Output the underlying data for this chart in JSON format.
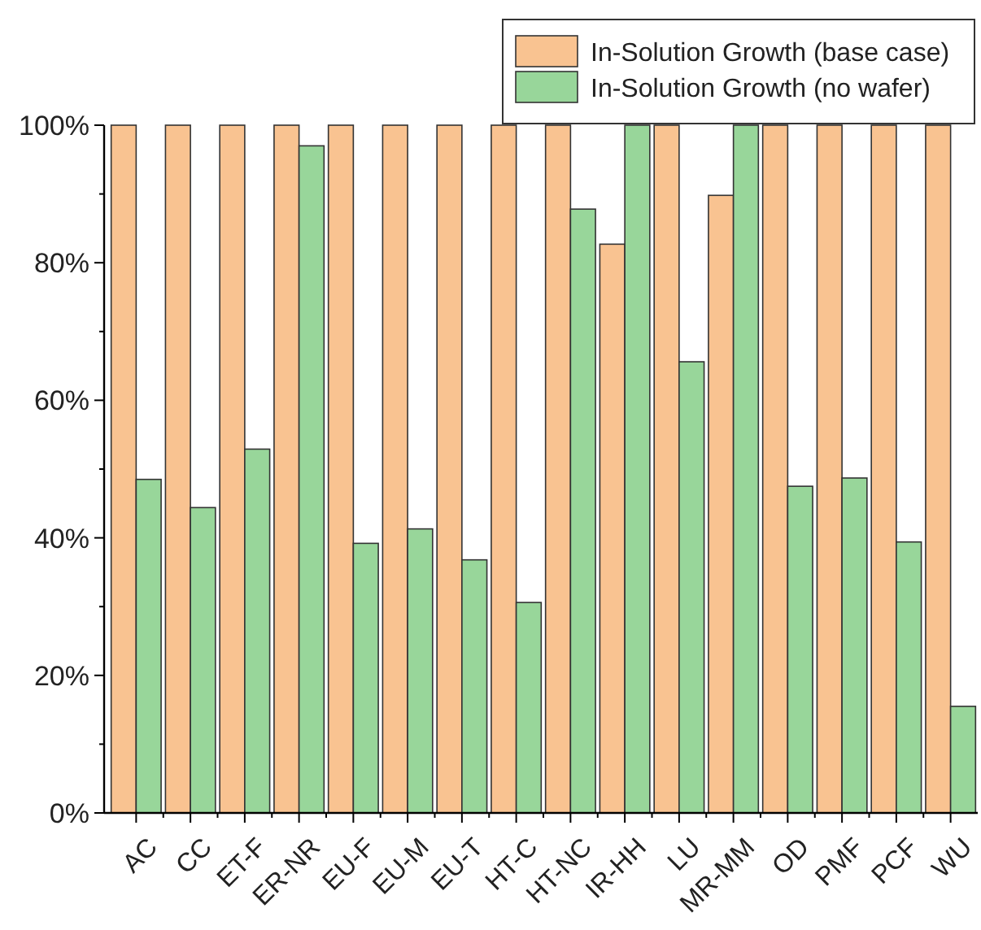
{
  "chart_data": {
    "type": "bar",
    "categories": [
      "AC",
      "CC",
      "ET-F",
      "ER-NR",
      "EU-F",
      "EU-M",
      "EU-T",
      "HT-C",
      "HT-NC",
      "IR-HH",
      "LU",
      "MR-MM",
      "OD",
      "PMF",
      "PCF",
      "WU"
    ],
    "series": [
      {
        "name": "In-Solution Growth (base case)",
        "color": "#f9c391",
        "values": [
          100,
          100,
          100,
          100,
          100,
          100,
          100,
          100,
          100,
          82.7,
          100,
          89.8,
          100,
          100,
          100,
          100
        ]
      },
      {
        "name": "In-Solution Growth (no wafer)",
        "color": "#98d69a",
        "values": [
          48.5,
          44.4,
          52.9,
          97,
          39.2,
          41.3,
          36.8,
          30.6,
          87.8,
          100,
          65.6,
          100,
          47.5,
          48.7,
          39.4,
          15.5
        ]
      }
    ],
    "ylim": [
      0,
      100
    ],
    "yticks": [
      {
        "value": 0,
        "label": "0%"
      },
      {
        "value": 10,
        "label": null
      },
      {
        "value": 20,
        "label": "20%"
      },
      {
        "value": 30,
        "label": null
      },
      {
        "value": 40,
        "label": "40%"
      },
      {
        "value": 50,
        "label": null
      },
      {
        "value": 60,
        "label": "60%"
      },
      {
        "value": 70,
        "label": null
      },
      {
        "value": 80,
        "label": "80%"
      },
      {
        "value": 90,
        "label": null
      },
      {
        "value": 100,
        "label": "100%"
      }
    ],
    "grid": false,
    "legend": "top right"
  }
}
